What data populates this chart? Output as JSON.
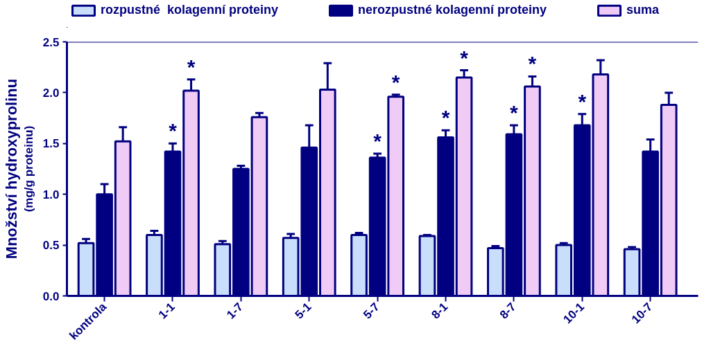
{
  "chart_data": {
    "type": "bar",
    "ylabel": "Množství hydroxyprolinu",
    "subtitle": "(mg/g proteinu)",
    "categories": [
      "kontrola",
      "1-1",
      "1-7",
      "5-1",
      "5-7",
      "8-1",
      "8-7",
      "10-1",
      "10-7"
    ],
    "series": [
      {
        "name": "rozpustné  kolagenní proteiny",
        "color": "#c8defa",
        "values": [
          0.52,
          0.6,
          0.51,
          0.57,
          0.6,
          0.59,
          0.47,
          0.5,
          0.46
        ],
        "errors": [
          [
            0.52,
            0.56
          ],
          [
            0.6,
            0.64
          ],
          [
            0.51,
            0.54
          ],
          [
            0.57,
            0.61
          ],
          [
            0.6,
            0.62
          ],
          [
            0.59,
            0.6
          ],
          [
            0.47,
            0.49
          ],
          [
            0.5,
            0.52
          ],
          [
            0.46,
            0.48
          ]
        ]
      },
      {
        "name": "nerozpustné kolagenní proteiny",
        "color": "#000080",
        "values": [
          1.0,
          1.42,
          1.25,
          1.46,
          1.36,
          1.56,
          1.59,
          1.68,
          1.42
        ],
        "errors": [
          [
            1.0,
            1.1
          ],
          [
            1.42,
            1.5
          ],
          [
            1.25,
            1.28
          ],
          [
            1.46,
            1.68
          ],
          [
            1.36,
            1.4
          ],
          [
            1.56,
            1.63
          ],
          [
            1.59,
            1.68
          ],
          [
            1.68,
            1.79
          ],
          [
            1.42,
            1.54
          ]
        ],
        "value_labels": [
          null,
          "*",
          null,
          null,
          "*",
          "*",
          "*",
          "*",
          null
        ]
      },
      {
        "name": "suma",
        "color": "#f0cbf5",
        "values": [
          1.52,
          2.02,
          1.76,
          2.03,
          1.96,
          2.15,
          2.06,
          2.18,
          1.88
        ],
        "errors": [
          [
            1.52,
            1.66
          ],
          [
            2.02,
            2.13
          ],
          [
            1.76,
            1.8
          ],
          [
            2.03,
            2.29
          ],
          [
            1.96,
            1.98
          ],
          [
            2.15,
            2.22
          ],
          [
            2.06,
            2.16
          ],
          [
            2.18,
            2.32
          ],
          [
            1.88,
            2.0
          ]
        ],
        "value_labels": [
          null,
          "*",
          null,
          null,
          "*",
          "*",
          "*",
          null,
          null
        ]
      }
    ],
    "ylim": [
      0,
      2.5
    ],
    "yticks": [
      {
        "value": 0,
        "label": "0.0"
      },
      {
        "value": 0.5,
        "label": "0.5"
      },
      {
        "value": 1,
        "label": "1.0"
      },
      {
        "value": 1.5,
        "label": "1.5"
      },
      {
        "value": 2,
        "label": "2.0"
      },
      {
        "value": 2.5,
        "label": "2.5"
      }
    ],
    "grid": false,
    "legend": "top"
  }
}
